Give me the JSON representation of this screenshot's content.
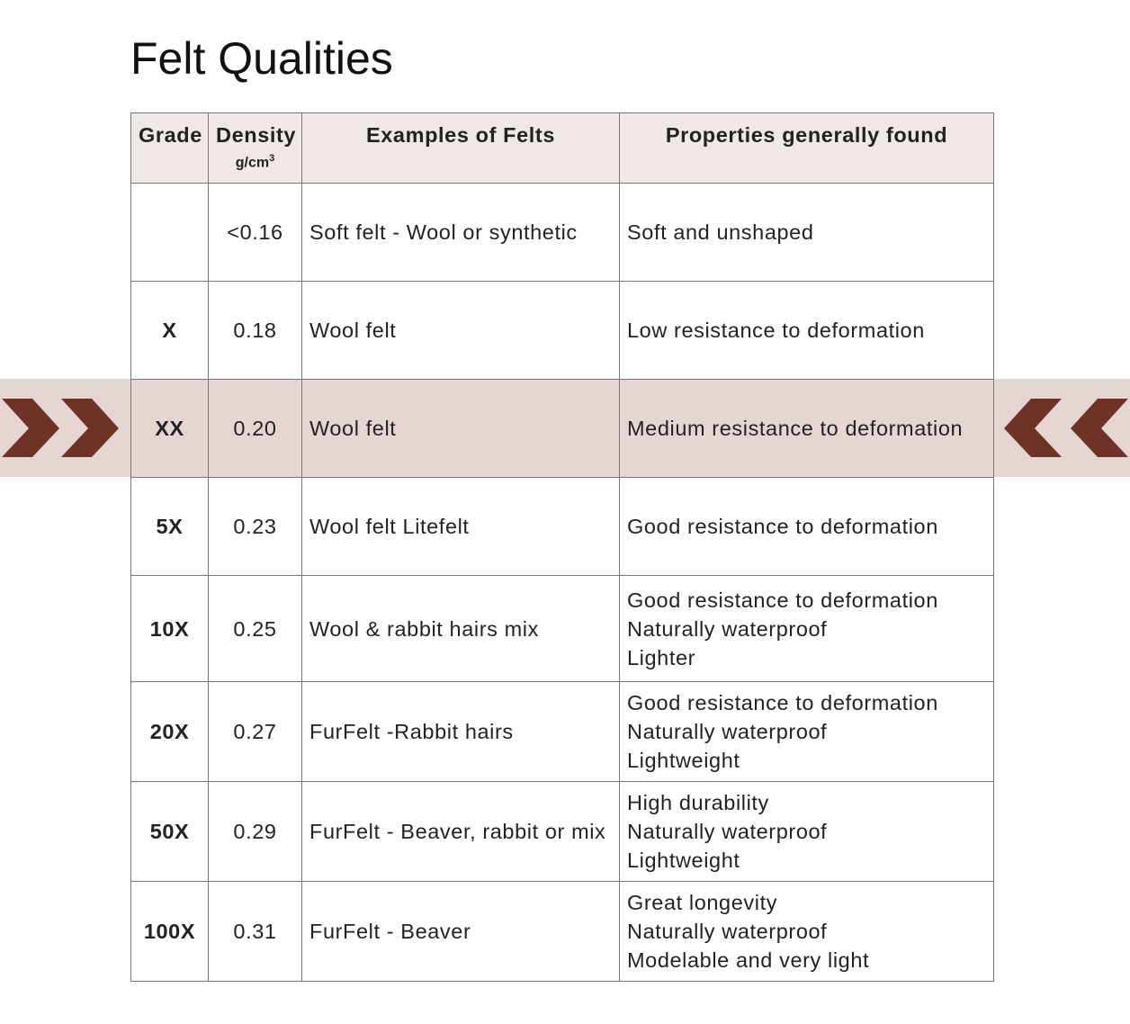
{
  "title": "Felt Qualities",
  "table": {
    "columns": [
      {
        "label": "Grade"
      },
      {
        "label": "Density",
        "unit": "g/cm",
        "unit_exponent": "3"
      },
      {
        "label": "Examples of Felts"
      },
      {
        "label": "Properties generally found"
      }
    ],
    "rows": [
      {
        "grade": null,
        "density": "<0.16",
        "example": "Soft felt - Wool or synthetic",
        "properties": [
          "Soft and unshaped"
        ]
      },
      {
        "grade": "X",
        "density": "0.18",
        "example": "Wool felt",
        "properties": [
          "Low resistance to deformation"
        ]
      },
      {
        "grade": "XX",
        "density": "0.20",
        "example": "Wool felt",
        "properties": [
          "Medium resistance to deformation"
        ],
        "highlight": true
      },
      {
        "grade": "5X",
        "density": "0.23",
        "example": "Wool felt Litefelt",
        "properties": [
          "Good resistance to deformation"
        ]
      },
      {
        "grade": "10X",
        "density": "0.25",
        "example": "Wool & rabbit hairs mix",
        "properties": [
          "Good resistance to deformation",
          "Naturally waterproof",
          "Lighter"
        ]
      },
      {
        "grade": "20X",
        "density": "0.27",
        "example": "FurFelt -Rabbit hairs",
        "properties": [
          "Good resistance to deformation",
          "Naturally waterproof",
          "Lightweight"
        ]
      },
      {
        "grade": "50X",
        "density": "0.29",
        "example": "FurFelt - Beaver, rabbit or mix",
        "properties": [
          "High durability",
          "Naturally waterproof",
          "Lightweight"
        ]
      },
      {
        "grade": "100X",
        "density": "0.31",
        "example": "FurFelt - Beaver",
        "properties": [
          "Great longevity",
          "Naturally waterproof",
          "Modelable and very light"
        ]
      }
    ]
  }
}
